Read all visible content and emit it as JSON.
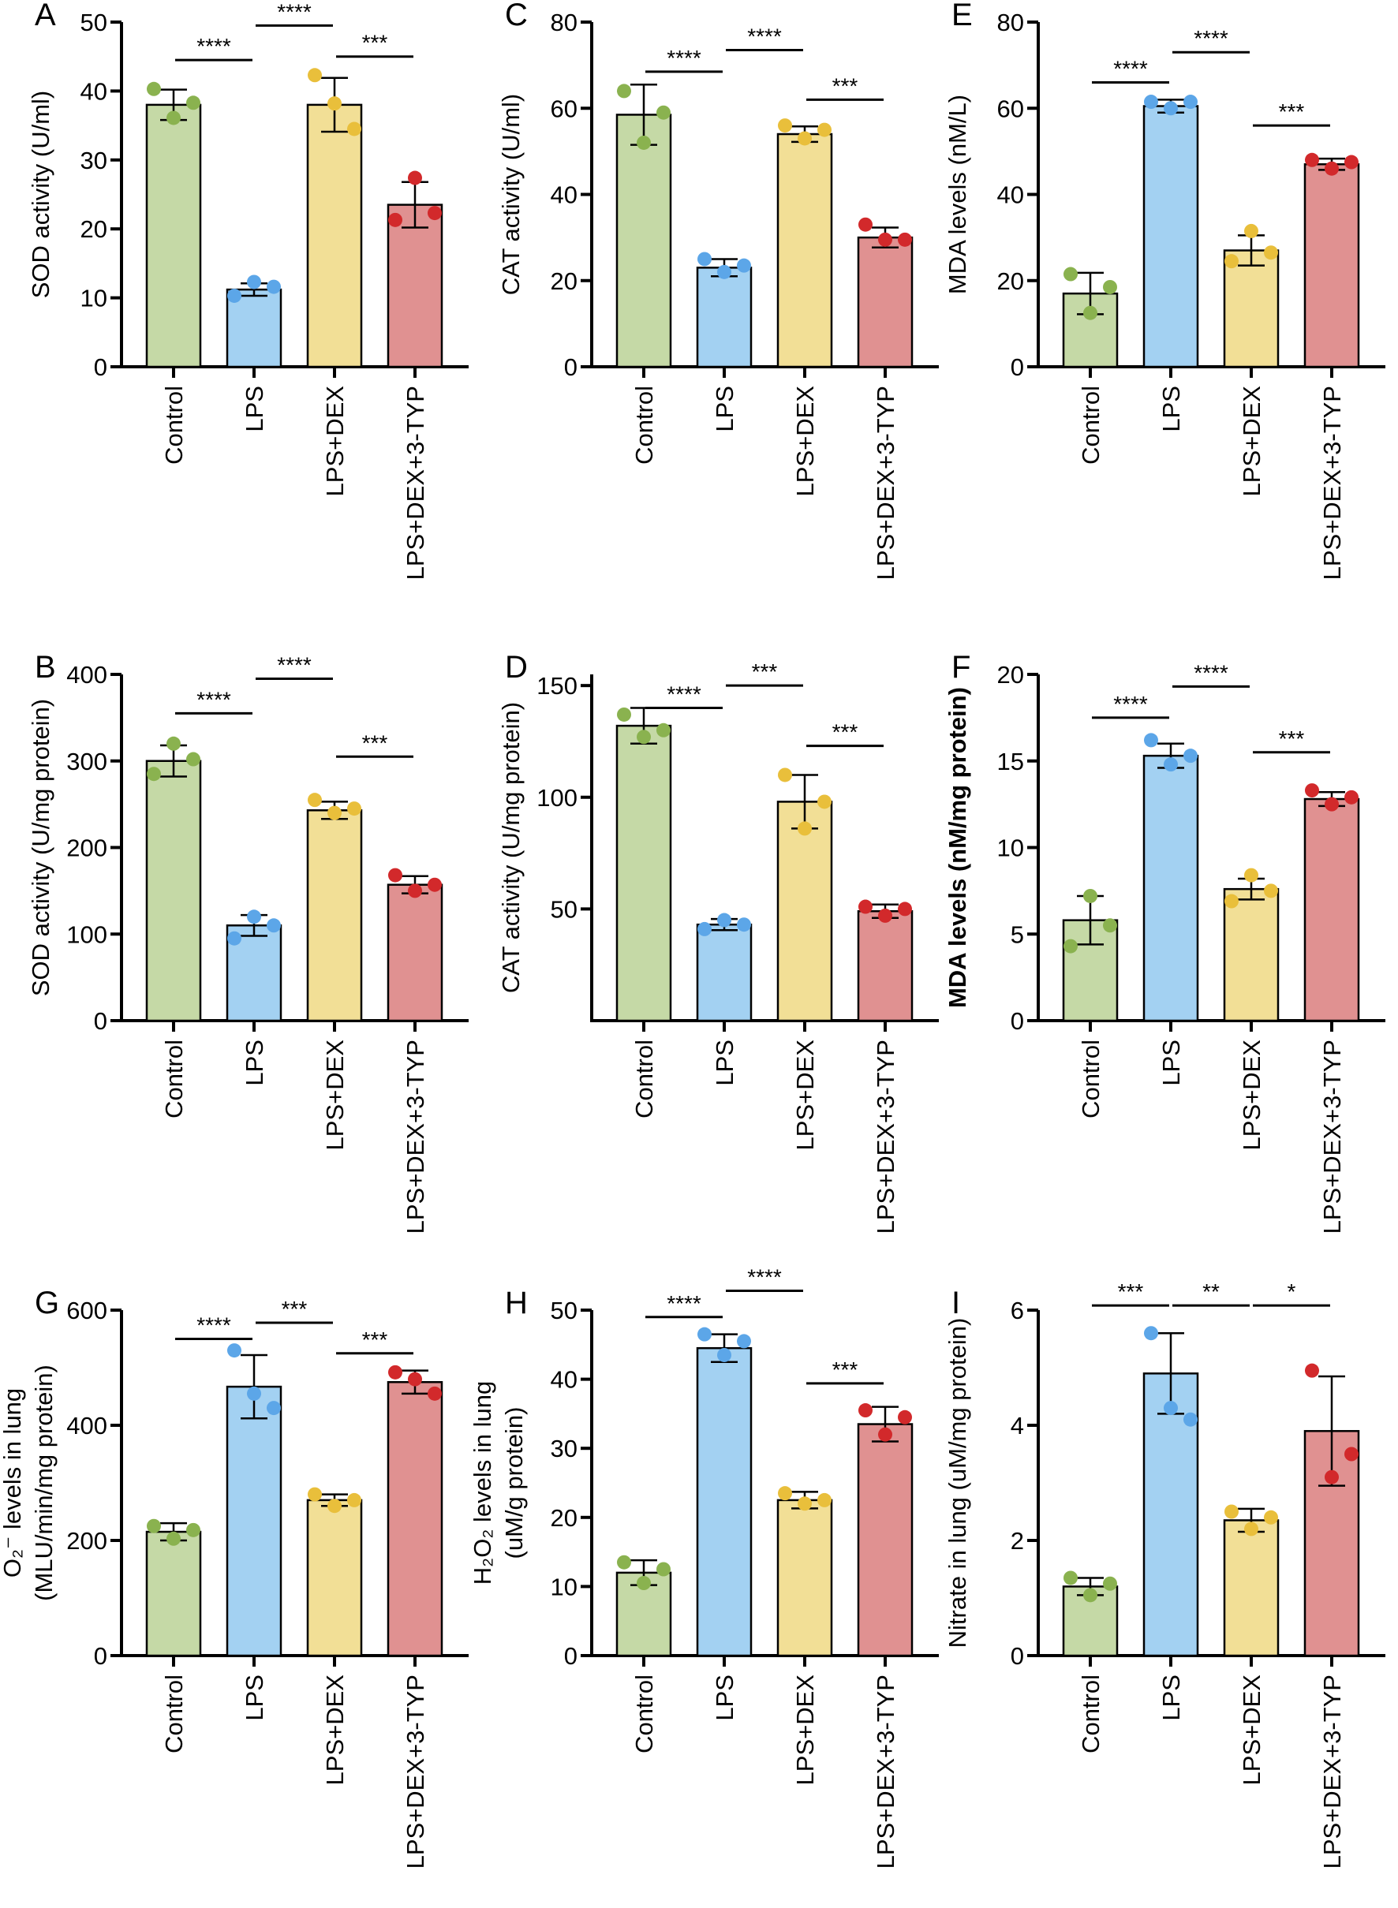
{
  "colors": {
    "bar_fill": [
      "#c5d9a6",
      "#a3d1f2",
      "#f2df96",
      "#e09191"
    ],
    "point": [
      "#8ab24f",
      "#5ca6e8",
      "#e9bf3b",
      "#d2292b"
    ],
    "stroke": "#000000"
  },
  "chart_data": [
    {
      "type": "bar",
      "panel": "A",
      "ylabel": [
        "SOD activity (U/ml)"
      ],
      "bold_ylabel": false,
      "categories": [
        "Control",
        "LPS",
        "LPS+DEX",
        "LPS+DEX+3-TYP"
      ],
      "ylim": [
        0,
        50
      ],
      "yticks": [
        0,
        10,
        20,
        30,
        40,
        50
      ],
      "means": [
        38,
        11.2,
        38,
        23.5
      ],
      "sd": [
        2.2,
        0.9,
        3.9,
        3.3
      ],
      "points": [
        [
          40.3,
          36.1,
          38.3
        ],
        [
          10.3,
          12.3,
          11.6
        ],
        [
          42.3,
          38.2,
          34.5
        ],
        [
          21.3,
          27.4,
          22.3
        ]
      ],
      "significance": [
        {
          "from": 0,
          "to": 1,
          "label": "****",
          "y": 44.5
        },
        {
          "from": 1,
          "to": 2,
          "label": "****",
          "y": 49.5
        },
        {
          "from": 2,
          "to": 3,
          "label": "***",
          "y": 45
        }
      ]
    },
    {
      "type": "bar",
      "panel": "C",
      "ylabel": [
        "CAT activity (U/ml)"
      ],
      "bold_ylabel": false,
      "categories": [
        "Control",
        "LPS",
        "LPS+DEX",
        "LPS+DEX+3-TYP"
      ],
      "ylim": [
        0,
        80
      ],
      "yticks": [
        0,
        20,
        40,
        60,
        80
      ],
      "means": [
        58.5,
        23,
        54,
        30
      ],
      "sd": [
        7,
        2,
        1.8,
        2.3
      ],
      "points": [
        [
          64,
          52,
          59
        ],
        [
          25,
          22,
          23.5
        ],
        [
          56,
          53,
          55
        ],
        [
          33,
          29.5,
          29.5
        ]
      ],
      "significance": [
        {
          "from": 0,
          "to": 1,
          "label": "****",
          "y": 68.5
        },
        {
          "from": 1,
          "to": 2,
          "label": "****",
          "y": 73.5
        },
        {
          "from": 2,
          "to": 3,
          "label": "***",
          "y": 62
        }
      ]
    },
    {
      "type": "bar",
      "panel": "E",
      "ylabel": [
        "MDA levels (nM/L)"
      ],
      "bold_ylabel": false,
      "categories": [
        "Control",
        "LPS",
        "LPS+DEX",
        "LPS+DEX+3-TYP"
      ],
      "ylim": [
        0,
        80
      ],
      "yticks": [
        0,
        20,
        40,
        60,
        80
      ],
      "means": [
        17,
        60.5,
        27,
        47
      ],
      "sd": [
        4.8,
        1.5,
        3.5,
        1.3
      ],
      "points": [
        [
          21.5,
          12.5,
          18.5
        ],
        [
          61.5,
          60,
          61.5
        ],
        [
          24.5,
          31.5,
          26.5
        ],
        [
          48,
          46,
          47.5
        ]
      ],
      "significance": [
        {
          "from": 0,
          "to": 1,
          "label": "****",
          "y": 66
        },
        {
          "from": 1,
          "to": 2,
          "label": "****",
          "y": 73
        },
        {
          "from": 2,
          "to": 3,
          "label": "***",
          "y": 56
        }
      ]
    },
    {
      "type": "bar",
      "panel": "B",
      "ylabel": [
        "SOD activity (U/mg protein)"
      ],
      "bold_ylabel": false,
      "categories": [
        "Control",
        "LPS",
        "LPS+DEX",
        "LPS+DEX+3-TYP"
      ],
      "ylim": [
        0,
        400
      ],
      "yticks": [
        0,
        100,
        200,
        300,
        400
      ],
      "means": [
        300,
        110,
        243,
        157
      ],
      "sd": [
        18,
        12,
        10,
        10
      ],
      "points": [
        [
          285,
          320,
          302
        ],
        [
          95,
          120,
          110
        ],
        [
          255,
          240,
          245
        ],
        [
          168,
          150,
          157
        ]
      ],
      "significance": [
        {
          "from": 0,
          "to": 1,
          "label": "****",
          "y": 355
        },
        {
          "from": 1,
          "to": 2,
          "label": "****",
          "y": 395
        },
        {
          "from": 2,
          "to": 3,
          "label": "***",
          "y": 305
        }
      ]
    },
    {
      "type": "bar",
      "panel": "D",
      "ylabel": [
        "CAT activity (U/mg protein)"
      ],
      "bold_ylabel": false,
      "categories": [
        "Control",
        "LPS",
        "LPS+DEX",
        "LPS+DEX+3-TYP"
      ],
      "ylim": [
        0,
        155
      ],
      "yticks": [
        50,
        100,
        150
      ],
      "means": [
        132,
        43,
        98,
        49
      ],
      "sd": [
        8,
        2.5,
        12,
        3
      ],
      "points": [
        [
          137,
          127,
          130
        ],
        [
          41,
          45,
          43
        ],
        [
          110,
          86,
          98
        ],
        [
          51,
          47,
          50
        ]
      ],
      "significance": [
        {
          "from": 0,
          "to": 1,
          "label": "****",
          "y": 140
        },
        {
          "from": 1,
          "to": 2,
          "label": "***",
          "y": 150
        },
        {
          "from": 2,
          "to": 3,
          "label": "***",
          "y": 123
        }
      ]
    },
    {
      "type": "bar",
      "panel": "F",
      "ylabel": [
        "MDA levels (nM/mg protein)"
      ],
      "bold_ylabel": true,
      "categories": [
        "Control",
        "LPS",
        "LPS+DEX",
        "LPS+DEX+3-TYP"
      ],
      "ylim": [
        0,
        20
      ],
      "yticks": [
        0,
        5,
        10,
        15,
        20
      ],
      "means": [
        5.8,
        15.3,
        7.6,
        12.8
      ],
      "sd": [
        1.4,
        0.7,
        0.6,
        0.4
      ],
      "points": [
        [
          4.3,
          7.2,
          5.5
        ],
        [
          16.2,
          14.8,
          15.3
        ],
        [
          6.9,
          8.4,
          7.5
        ],
        [
          13.3,
          12.5,
          12.9
        ]
      ],
      "significance": [
        {
          "from": 0,
          "to": 1,
          "label": "****",
          "y": 17.5
        },
        {
          "from": 1,
          "to": 2,
          "label": "****",
          "y": 19.3
        },
        {
          "from": 2,
          "to": 3,
          "label": "***",
          "y": 15.5
        }
      ]
    },
    {
      "type": "bar",
      "panel": "G",
      "ylabel": [
        "O₂⁻ levels in lung",
        "(MLU/min/mg protein)"
      ],
      "bold_ylabel": false,
      "categories": [
        "Control",
        "LPS",
        "LPS+DEX",
        "LPS+DEX+3-TYP"
      ],
      "ylim": [
        0,
        600
      ],
      "yticks": [
        0,
        200,
        400,
        600
      ],
      "means": [
        215,
        467,
        270,
        475
      ],
      "sd": [
        15,
        55,
        10,
        20
      ],
      "points": [
        [
          225,
          203,
          218
        ],
        [
          530,
          455,
          430
        ],
        [
          280,
          260,
          270
        ],
        [
          492,
          480,
          455
        ]
      ],
      "significance": [
        {
          "from": 0,
          "to": 1,
          "label": "****",
          "y": 550
        },
        {
          "from": 1,
          "to": 2,
          "label": "***",
          "y": 578
        },
        {
          "from": 2,
          "to": 3,
          "label": "***",
          "y": 525
        }
      ]
    },
    {
      "type": "bar",
      "panel": "H",
      "ylabel": [
        "H₂O₂ levels in lung",
        "(uM/g protein)"
      ],
      "bold_ylabel": false,
      "categories": [
        "Control",
        "LPS",
        "LPS+DEX",
        "LPS+DEX+3-TYP"
      ],
      "ylim": [
        0,
        50
      ],
      "yticks": [
        0,
        10,
        20,
        30,
        40,
        50
      ],
      "means": [
        12,
        44.5,
        22.5,
        33.5
      ],
      "sd": [
        1.8,
        2,
        1.2,
        2.5
      ],
      "points": [
        [
          13.5,
          10.5,
          12.5
        ],
        [
          46.5,
          43.5,
          45.5
        ],
        [
          23.5,
          22,
          22.5
        ],
        [
          35.5,
          32,
          34.5
        ]
      ],
      "significance": [
        {
          "from": 0,
          "to": 1,
          "label": "****",
          "y": 49
        },
        {
          "from": 1,
          "to": 2,
          "label": "****",
          "y": 52.8
        },
        {
          "from": 2,
          "to": 3,
          "label": "***",
          "y": 39.4
        }
      ]
    },
    {
      "type": "bar",
      "panel": "I",
      "ylabel": [
        "Nitrate in lung (uM/mg protein)"
      ],
      "bold_ylabel": false,
      "categories": [
        "Control",
        "LPS",
        "LPS+DEX",
        "LPS+DEX+3-TYP"
      ],
      "ylim": [
        0,
        6
      ],
      "yticks": [
        0,
        2,
        4,
        6
      ],
      "means": [
        1.2,
        4.9,
        2.35,
        3.9
      ],
      "sd": [
        0.15,
        0.7,
        0.2,
        0.95
      ],
      "points": [
        [
          1.35,
          1.05,
          1.25
        ],
        [
          5.6,
          4.3,
          4.1
        ],
        [
          2.5,
          2.2,
          2.4
        ],
        [
          4.95,
          3.1,
          3.5
        ]
      ],
      "significance": [
        {
          "from": 0,
          "to": 1,
          "label": "***",
          "y": 6.08
        },
        {
          "from": 1,
          "to": 2,
          "label": "**",
          "y": 6.08
        },
        {
          "from": 2,
          "to": 3,
          "label": "*",
          "y": 6.08
        }
      ]
    }
  ]
}
